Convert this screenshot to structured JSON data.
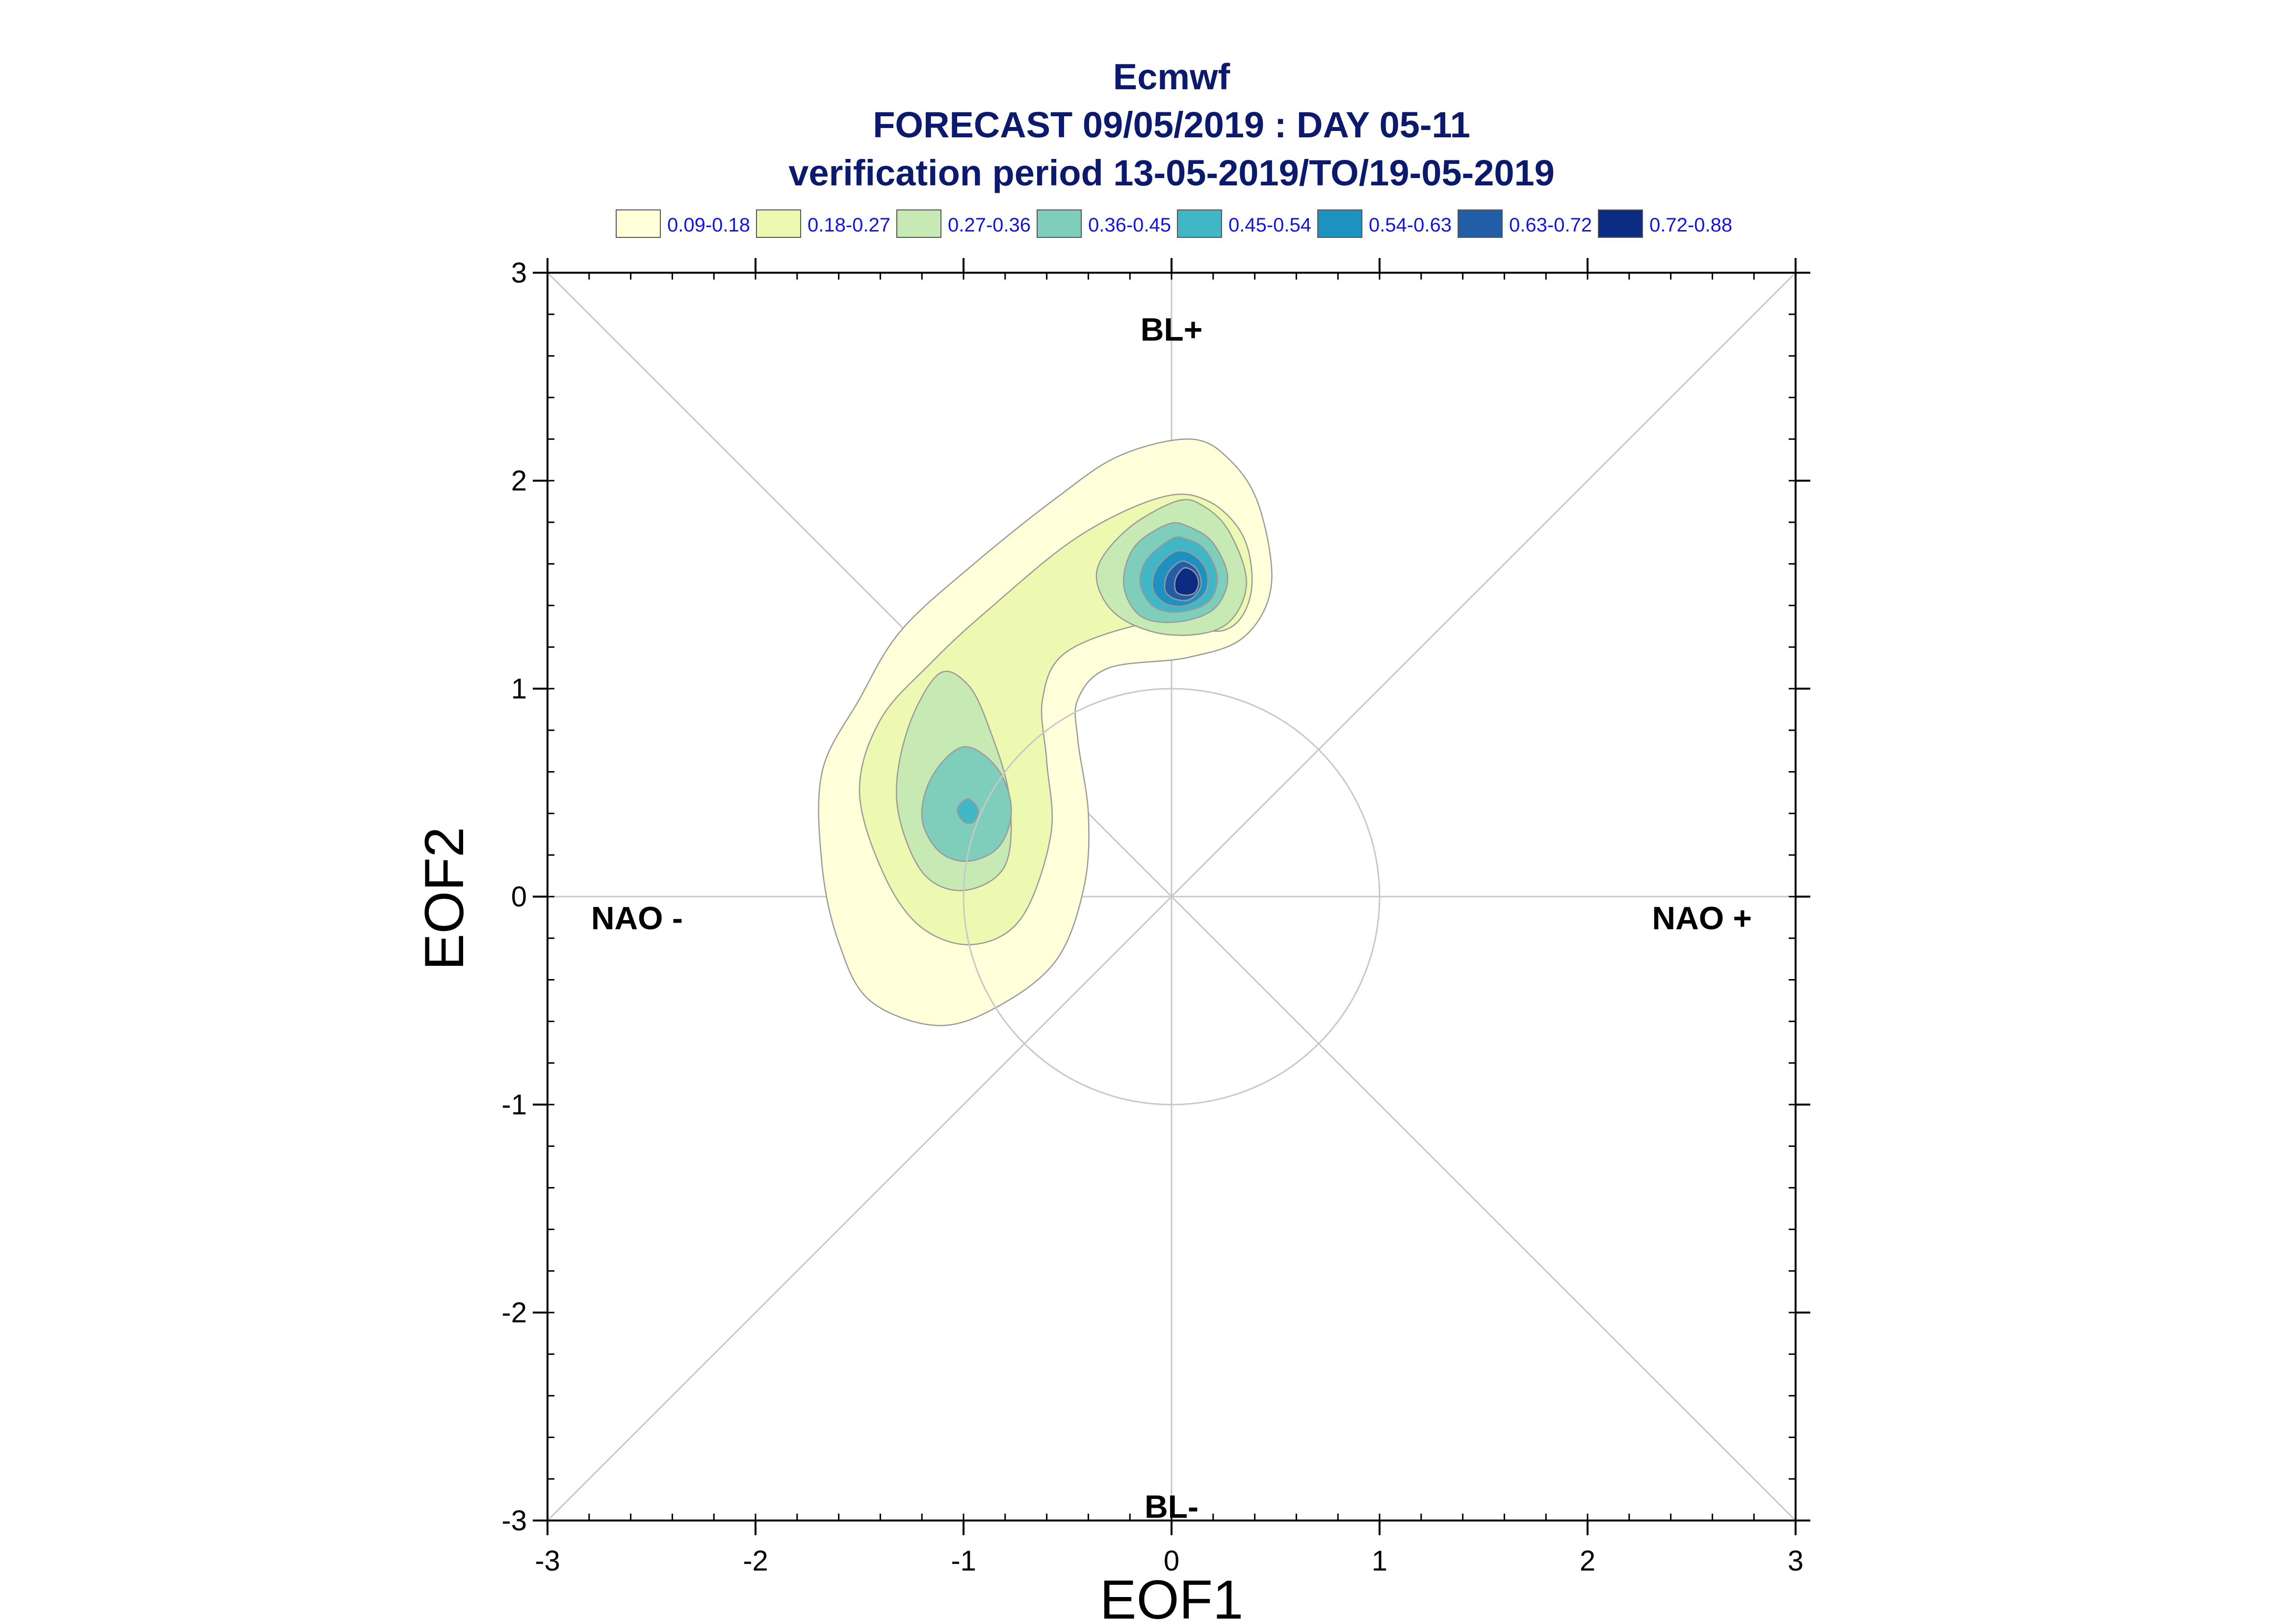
{
  "chart_data": {
    "type": "heatmap",
    "title_lines": [
      "Ecmwf",
      "FORECAST 09/05/2019 : DAY 05-11",
      "verification period 13-05-2019/TO/19-05-2019"
    ],
    "xlabel": "EOF1",
    "ylabel": "EOF2",
    "xlim": [
      -3,
      3
    ],
    "ylim": [
      -3,
      3
    ],
    "x_ticks": [
      "-3",
      "-2",
      "-1",
      "0",
      "1",
      "2",
      "3"
    ],
    "y_ticks": [
      "-3",
      "-2",
      "-1",
      "0",
      "1",
      "2",
      "3"
    ],
    "legend_placement": "top",
    "legend": [
      {
        "label": "0.09-0.18",
        "color": "#ffffd9"
      },
      {
        "label": "0.18-0.27",
        "color": "#edf8b1"
      },
      {
        "label": "0.27-0.36",
        "color": "#c7e9b4"
      },
      {
        "label": "0.36-0.45",
        "color": "#7fcdbb"
      },
      {
        "label": "0.45-0.54",
        "color": "#41b6c4"
      },
      {
        "label": "0.54-0.63",
        "color": "#1d91c0"
      },
      {
        "label": "0.63-0.72",
        "color": "#225ea8"
      },
      {
        "label": "0.72-0.88",
        "color": "#0c2c84"
      }
    ],
    "regime_labels": [
      {
        "text": "BL+",
        "x": 0.0,
        "y": 2.73
      },
      {
        "text": "BL-",
        "x": 0.0,
        "y": -2.93
      },
      {
        "text": "NAO -",
        "x": -2.57,
        "y": -0.1
      },
      {
        "text": "NAO +",
        "x": 2.55,
        "y": -0.1
      }
    ],
    "reference_circle": {
      "center": [
        0,
        0
      ],
      "radius": 1
    },
    "density_peaks": [
      {
        "x": 0.09,
        "y": 1.53,
        "max_density": 0.88
      },
      {
        "x": -0.98,
        "y": 0.42,
        "max_density": 0.54
      }
    ],
    "contours": [
      {
        "band": 0,
        "points": [
          [
            0.09,
            2.2
          ],
          [
            -0.25,
            2.12
          ],
          [
            -0.55,
            1.92
          ],
          [
            -0.95,
            1.6
          ],
          [
            -1.3,
            1.28
          ],
          [
            -1.5,
            0.95
          ],
          [
            -1.68,
            0.6
          ],
          [
            -1.68,
            0.15
          ],
          [
            -1.6,
            -0.22
          ],
          [
            -1.45,
            -0.5
          ],
          [
            -1.12,
            -0.62
          ],
          [
            -0.82,
            -0.52
          ],
          [
            -0.55,
            -0.3
          ],
          [
            -0.42,
            0.05
          ],
          [
            -0.4,
            0.4
          ],
          [
            -0.45,
            0.75
          ],
          [
            -0.45,
            0.95
          ],
          [
            -0.3,
            1.1
          ],
          [
            0.08,
            1.15
          ],
          [
            0.35,
            1.25
          ],
          [
            0.48,
            1.5
          ],
          [
            0.42,
            1.88
          ],
          [
            0.28,
            2.1
          ]
        ]
      },
      {
        "band": 1,
        "points": [
          [
            -0.05,
            1.92
          ],
          [
            -0.45,
            1.73
          ],
          [
            -0.88,
            1.38
          ],
          [
            -1.15,
            1.13
          ],
          [
            -1.4,
            0.85
          ],
          [
            -1.5,
            0.5
          ],
          [
            -1.38,
            0.1
          ],
          [
            -1.2,
            -0.15
          ],
          [
            -0.95,
            -0.23
          ],
          [
            -0.72,
            -0.1
          ],
          [
            -0.58,
            0.3
          ],
          [
            -0.6,
            0.65
          ],
          [
            -0.62,
            0.95
          ],
          [
            -0.5,
            1.18
          ],
          [
            -0.08,
            1.32
          ],
          [
            0.25,
            1.28
          ],
          [
            0.38,
            1.45
          ],
          [
            0.35,
            1.72
          ],
          [
            0.18,
            1.9
          ]
        ]
      },
      {
        "band": 2,
        "points": [
          [
            -1.12,
            1.07
          ],
          [
            -1.27,
            0.8
          ],
          [
            -1.32,
            0.45
          ],
          [
            -1.2,
            0.12
          ],
          [
            -1.0,
            0.03
          ],
          [
            -0.8,
            0.15
          ],
          [
            -0.78,
            0.48
          ],
          [
            -0.88,
            0.82
          ],
          [
            -0.98,
            1.02
          ]
        ]
      },
      {
        "band": 2,
        "points": [
          [
            0.02,
            1.9
          ],
          [
            -0.22,
            1.76
          ],
          [
            -0.36,
            1.56
          ],
          [
            -0.27,
            1.36
          ],
          [
            -0.02,
            1.26
          ],
          [
            0.25,
            1.3
          ],
          [
            0.36,
            1.5
          ],
          [
            0.28,
            1.75
          ],
          [
            0.15,
            1.88
          ]
        ]
      },
      {
        "band": 3,
        "points": [
          [
            -1.0,
            0.72
          ],
          [
            -1.15,
            0.58
          ],
          [
            -1.2,
            0.38
          ],
          [
            -1.12,
            0.22
          ],
          [
            -0.98,
            0.17
          ],
          [
            -0.83,
            0.24
          ],
          [
            -0.77,
            0.42
          ],
          [
            -0.84,
            0.62
          ]
        ]
      },
      {
        "band": 3,
        "points": [
          [
            -0.02,
            1.79
          ],
          [
            -0.18,
            1.68
          ],
          [
            -0.23,
            1.5
          ],
          [
            -0.15,
            1.35
          ],
          [
            0.02,
            1.32
          ],
          [
            0.2,
            1.38
          ],
          [
            0.27,
            1.53
          ],
          [
            0.2,
            1.7
          ],
          [
            0.08,
            1.78
          ]
        ]
      },
      {
        "band": 4,
        "points": [
          [
            -0.98,
            0.47
          ],
          [
            -1.03,
            0.42
          ],
          [
            -1.0,
            0.36
          ],
          [
            -0.95,
            0.36
          ],
          [
            -0.93,
            0.42
          ]
        ]
      },
      {
        "band": 4,
        "points": [
          [
            0.0,
            1.72
          ],
          [
            -0.12,
            1.62
          ],
          [
            -0.15,
            1.5
          ],
          [
            -0.08,
            1.39
          ],
          [
            0.05,
            1.37
          ],
          [
            0.18,
            1.42
          ],
          [
            0.22,
            1.54
          ],
          [
            0.16,
            1.67
          ],
          [
            0.07,
            1.72
          ]
        ]
      },
      {
        "band": 5,
        "points": [
          [
            0.02,
            1.66
          ],
          [
            -0.07,
            1.58
          ],
          [
            -0.09,
            1.48
          ],
          [
            -0.03,
            1.41
          ],
          [
            0.07,
            1.4
          ],
          [
            0.16,
            1.46
          ],
          [
            0.17,
            1.56
          ],
          [
            0.11,
            1.64
          ]
        ]
      },
      {
        "band": 6,
        "points": [
          [
            0.04,
            1.61
          ],
          [
            -0.02,
            1.55
          ],
          [
            -0.03,
            1.47
          ],
          [
            0.02,
            1.43
          ],
          [
            0.09,
            1.43
          ],
          [
            0.14,
            1.49
          ],
          [
            0.13,
            1.56
          ],
          [
            0.09,
            1.6
          ]
        ]
      },
      {
        "band": 7,
        "points": [
          [
            0.06,
            1.58
          ],
          [
            0.02,
            1.53
          ],
          [
            0.02,
            1.47
          ],
          [
            0.06,
            1.45
          ],
          [
            0.11,
            1.46
          ],
          [
            0.13,
            1.51
          ],
          [
            0.11,
            1.56
          ]
        ]
      }
    ]
  }
}
